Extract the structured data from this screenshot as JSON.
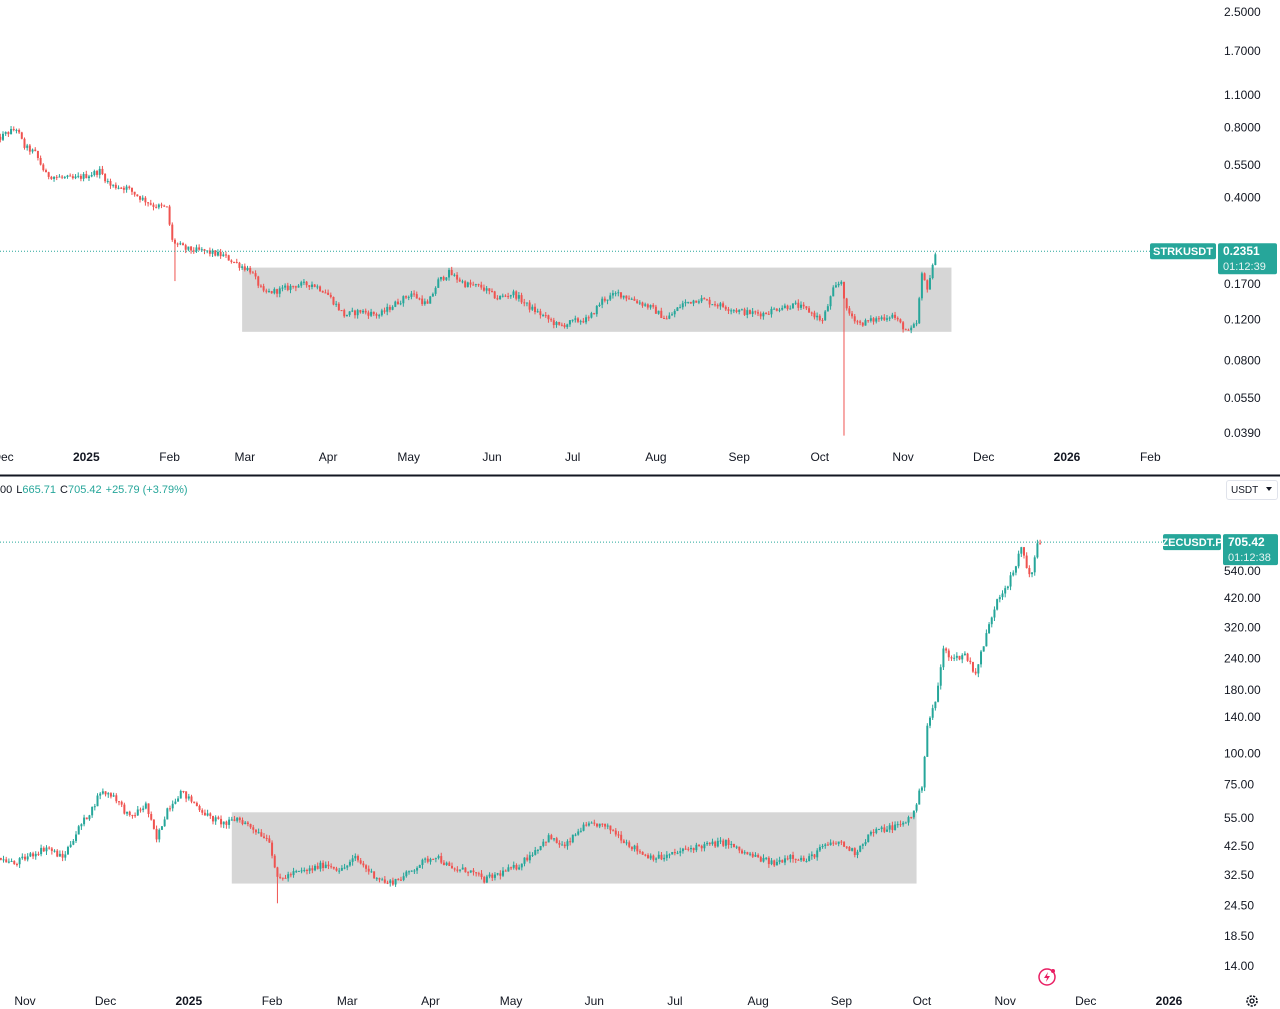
{
  "colors": {
    "up": "#26a69a",
    "down": "#ef5350",
    "box": "#d6d6d6",
    "divider": "#131722"
  },
  "legend": {
    "prefix": "00",
    "low_label": "L",
    "low": "665.71",
    "close_label": "C",
    "close": "705.42",
    "change": "+25.79 (+3.79%)"
  },
  "currency_select": {
    "label": "USDT"
  },
  "icons": [
    "lightning-icon",
    "settings-gear-icon",
    "chevron-down-icon"
  ],
  "chart_data": [
    {
      "type": "candlestick",
      "symbol": "STRKUSDT",
      "last_price": "0.2351",
      "countdown": "01:12:39",
      "log_scale": true,
      "y_ticks": [
        {
          "value": 2.5,
          "label": "2.5000"
        },
        {
          "value": 1.7,
          "label": "1.7000"
        },
        {
          "value": 1.1,
          "label": "1.1000"
        },
        {
          "value": 0.8,
          "label": "0.8000"
        },
        {
          "value": 0.55,
          "label": "0.5500"
        },
        {
          "value": 0.4,
          "label": "0.4000"
        },
        {
          "value": 0.17,
          "label": "0.1700"
        },
        {
          "value": 0.12,
          "label": "0.1200"
        },
        {
          "value": 0.08,
          "label": "0.0800"
        },
        {
          "value": 0.055,
          "label": "0.0550"
        },
        {
          "value": 0.039,
          "label": "0.0390"
        }
      ],
      "x_ticks": [
        {
          "date": "2024-12-01",
          "label": "Dec"
        },
        {
          "date": "2025-01-01",
          "label": "2025",
          "bold": true
        },
        {
          "date": "2025-02-01",
          "label": "Feb"
        },
        {
          "date": "2025-03-01",
          "label": "Mar"
        },
        {
          "date": "2025-04-01",
          "label": "Apr"
        },
        {
          "date": "2025-05-01",
          "label": "May"
        },
        {
          "date": "2025-06-01",
          "label": "Jun"
        },
        {
          "date": "2025-07-01",
          "label": "Jul"
        },
        {
          "date": "2025-08-01",
          "label": "Aug"
        },
        {
          "date": "2025-09-01",
          "label": "Sep"
        },
        {
          "date": "2025-10-01",
          "label": "Oct"
        },
        {
          "date": "2025-11-01",
          "label": "Nov"
        },
        {
          "date": "2025-12-01",
          "label": "Dec"
        },
        {
          "date": "2026-01-01",
          "label": "2026",
          "bold": true
        },
        {
          "date": "2026-02-01",
          "label": "Feb"
        }
      ],
      "range_box": {
        "from": "2025-02-28",
        "to": "2025-11-19",
        "high": 0.2,
        "low": 0.106
      },
      "price_path": [
        [
          "2024-11-27",
          0.68
        ],
        [
          "2024-12-02",
          0.75
        ],
        [
          "2024-12-06",
          0.79
        ],
        [
          "2024-12-09",
          0.66
        ],
        [
          "2024-12-13",
          0.62
        ],
        [
          "2024-12-17",
          0.5
        ],
        [
          "2024-12-21",
          0.49
        ],
        [
          "2024-12-27",
          0.48
        ],
        [
          "2025-01-02",
          0.5
        ],
        [
          "2025-01-06",
          0.52
        ],
        [
          "2025-01-10",
          0.45
        ],
        [
          "2025-01-16",
          0.44
        ],
        [
          "2025-01-21",
          0.4
        ],
        [
          "2025-01-26",
          0.37
        ],
        [
          "2025-01-31",
          0.36
        ],
        [
          "2025-02-02",
          0.26
        ],
        [
          "2025-02-07",
          0.24
        ],
        [
          "2025-02-14",
          0.235
        ],
        [
          "2025-02-21",
          0.225
        ],
        [
          "2025-02-27",
          0.205
        ],
        [
          "2025-03-03",
          0.195
        ],
        [
          "2025-03-08",
          0.155
        ],
        [
          "2025-03-14",
          0.16
        ],
        [
          "2025-03-20",
          0.168
        ],
        [
          "2025-03-26",
          0.17
        ],
        [
          "2025-03-31",
          0.158
        ],
        [
          "2025-04-07",
          0.125
        ],
        [
          "2025-04-13",
          0.13
        ],
        [
          "2025-04-20",
          0.125
        ],
        [
          "2025-04-26",
          0.14
        ],
        [
          "2025-05-02",
          0.155
        ],
        [
          "2025-05-08",
          0.138
        ],
        [
          "2025-05-12",
          0.175
        ],
        [
          "2025-05-16",
          0.19
        ],
        [
          "2025-05-22",
          0.17
        ],
        [
          "2025-05-28",
          0.165
        ],
        [
          "2025-06-03",
          0.148
        ],
        [
          "2025-06-09",
          0.155
        ],
        [
          "2025-06-15",
          0.135
        ],
        [
          "2025-06-21",
          0.122
        ],
        [
          "2025-06-26",
          0.112
        ],
        [
          "2025-07-02",
          0.118
        ],
        [
          "2025-07-07",
          0.12
        ],
        [
          "2025-07-12",
          0.145
        ],
        [
          "2025-07-18",
          0.155
        ],
        [
          "2025-07-24",
          0.145
        ],
        [
          "2025-07-30",
          0.135
        ],
        [
          "2025-08-05",
          0.12
        ],
        [
          "2025-08-11",
          0.14
        ],
        [
          "2025-08-17",
          0.147
        ],
        [
          "2025-08-23",
          0.14
        ],
        [
          "2025-08-29",
          0.133
        ],
        [
          "2025-09-04",
          0.128
        ],
        [
          "2025-09-10",
          0.127
        ],
        [
          "2025-09-16",
          0.135
        ],
        [
          "2025-09-22",
          0.138
        ],
        [
          "2025-09-27",
          0.13
        ],
        [
          "2025-10-02",
          0.118
        ],
        [
          "2025-10-06",
          0.16
        ],
        [
          "2025-10-09",
          0.175
        ],
        [
          "2025-10-11",
          0.13
        ],
        [
          "2025-10-16",
          0.115
        ],
        [
          "2025-10-22",
          0.12
        ],
        [
          "2025-10-28",
          0.125
        ],
        [
          "2025-11-03",
          0.105
        ],
        [
          "2025-11-06",
          0.115
        ],
        [
          "2025-11-08",
          0.185
        ],
        [
          "2025-11-10",
          0.165
        ],
        [
          "2025-11-12",
          0.2
        ],
        [
          "2025-11-13",
          0.235
        ]
      ],
      "notable_wicks": [
        {
          "date": "2025-02-03",
          "low": 0.175
        },
        {
          "date": "2025-10-10",
          "low": 0.038
        }
      ]
    },
    {
      "type": "candlestick",
      "symbol": "ZECUSDT.P",
      "last_price": "705.42",
      "countdown": "01:12:38",
      "log_scale": true,
      "y_ticks": [
        {
          "value": 540,
          "label": "540.00"
        },
        {
          "value": 420,
          "label": "420.00"
        },
        {
          "value": 320,
          "label": "320.00"
        },
        {
          "value": 240,
          "label": "240.00"
        },
        {
          "value": 180,
          "label": "180.00"
        },
        {
          "value": 140,
          "label": "140.00"
        },
        {
          "value": 100,
          "label": "100.00"
        },
        {
          "value": 75,
          "label": "75.00"
        },
        {
          "value": 55,
          "label": "55.00"
        },
        {
          "value": 42.5,
          "label": "42.50"
        },
        {
          "value": 32.5,
          "label": "32.50"
        },
        {
          "value": 24.5,
          "label": "24.50"
        },
        {
          "value": 18.5,
          "label": "18.50"
        },
        {
          "value": 14,
          "label": "14.00"
        }
      ],
      "x_ticks": [
        {
          "date": "2024-11-01",
          "label": "Nov"
        },
        {
          "date": "2024-12-01",
          "label": "Dec"
        },
        {
          "date": "2025-01-01",
          "label": "2025",
          "bold": true
        },
        {
          "date": "2025-02-01",
          "label": "Feb"
        },
        {
          "date": "2025-03-01",
          "label": "Mar"
        },
        {
          "date": "2025-04-01",
          "label": "Apr"
        },
        {
          "date": "2025-05-01",
          "label": "May"
        },
        {
          "date": "2025-06-01",
          "label": "Jun"
        },
        {
          "date": "2025-07-01",
          "label": "Jul"
        },
        {
          "date": "2025-08-01",
          "label": "Aug"
        },
        {
          "date": "2025-09-01",
          "label": "Sep"
        },
        {
          "date": "2025-10-01",
          "label": "Oct"
        },
        {
          "date": "2025-11-01",
          "label": "Nov"
        },
        {
          "date": "2025-12-01",
          "label": "Dec"
        },
        {
          "date": "2026-01-01",
          "label": "2026",
          "bold": true
        }
      ],
      "range_box": {
        "from": "2025-01-17",
        "to": "2025-09-29",
        "high": 58,
        "low": 30
      },
      "price_path": [
        [
          "2024-10-22",
          38
        ],
        [
          "2024-10-28",
          36
        ],
        [
          "2024-11-03",
          39
        ],
        [
          "2024-11-09",
          42
        ],
        [
          "2024-11-15",
          38
        ],
        [
          "2024-11-21",
          50
        ],
        [
          "2024-11-26",
          60
        ],
        [
          "2024-11-29",
          70
        ],
        [
          "2024-12-04",
          68
        ],
        [
          "2024-12-10",
          55
        ],
        [
          "2024-12-16",
          62
        ],
        [
          "2024-12-20",
          45
        ],
        [
          "2024-12-24",
          60
        ],
        [
          "2024-12-29",
          70
        ],
        [
          "2025-01-03",
          63
        ],
        [
          "2025-01-09",
          55
        ],
        [
          "2025-01-15",
          52
        ],
        [
          "2025-01-19",
          55
        ],
        [
          "2025-01-25",
          50
        ],
        [
          "2025-01-31",
          45
        ],
        [
          "2025-02-03",
          31
        ],
        [
          "2025-02-09",
          33
        ],
        [
          "2025-02-15",
          34
        ],
        [
          "2025-02-21",
          36
        ],
        [
          "2025-02-27",
          34
        ],
        [
          "2025-03-04",
          38
        ],
        [
          "2025-03-10",
          33
        ],
        [
          "2025-03-16",
          30
        ],
        [
          "2025-03-22",
          32
        ],
        [
          "2025-03-28",
          36
        ],
        [
          "2025-04-03",
          39
        ],
        [
          "2025-04-09",
          34
        ],
        [
          "2025-04-15",
          34
        ],
        [
          "2025-04-21",
          31
        ],
        [
          "2025-04-27",
          33
        ],
        [
          "2025-05-03",
          35
        ],
        [
          "2025-05-09",
          40
        ],
        [
          "2025-05-15",
          46
        ],
        [
          "2025-05-21",
          42
        ],
        [
          "2025-05-27",
          50
        ],
        [
          "2025-06-02",
          52
        ],
        [
          "2025-06-08",
          49
        ],
        [
          "2025-06-14",
          43
        ],
        [
          "2025-06-20",
          39
        ],
        [
          "2025-06-26",
          38
        ],
        [
          "2025-07-02",
          40
        ],
        [
          "2025-07-08",
          42
        ],
        [
          "2025-07-14",
          43
        ],
        [
          "2025-07-20",
          44
        ],
        [
          "2025-07-26",
          40
        ],
        [
          "2025-08-01",
          38
        ],
        [
          "2025-08-07",
          36
        ],
        [
          "2025-08-13",
          39
        ],
        [
          "2025-08-19",
          37
        ],
        [
          "2025-08-25",
          42
        ],
        [
          "2025-08-31",
          44
        ],
        [
          "2025-09-06",
          40
        ],
        [
          "2025-09-12",
          48
        ],
        [
          "2025-09-18",
          50
        ],
        [
          "2025-09-24",
          52
        ],
        [
          "2025-09-28",
          58
        ],
        [
          "2025-10-01",
          75
        ],
        [
          "2025-10-03",
          130
        ],
        [
          "2025-10-06",
          160
        ],
        [
          "2025-10-09",
          260
        ],
        [
          "2025-10-13",
          240
        ],
        [
          "2025-10-17",
          250
        ],
        [
          "2025-10-21",
          210
        ],
        [
          "2025-10-25",
          300
        ],
        [
          "2025-10-29",
          420
        ],
        [
          "2025-11-02",
          480
        ],
        [
          "2025-11-05",
          560
        ],
        [
          "2025-11-07",
          680
        ],
        [
          "2025-11-09",
          560
        ],
        [
          "2025-11-11",
          520
        ],
        [
          "2025-11-13",
          700
        ],
        [
          "2025-11-14",
          705.42
        ]
      ],
      "notable_wicks": [
        {
          "date": "2025-02-03",
          "low": 25
        }
      ]
    }
  ]
}
